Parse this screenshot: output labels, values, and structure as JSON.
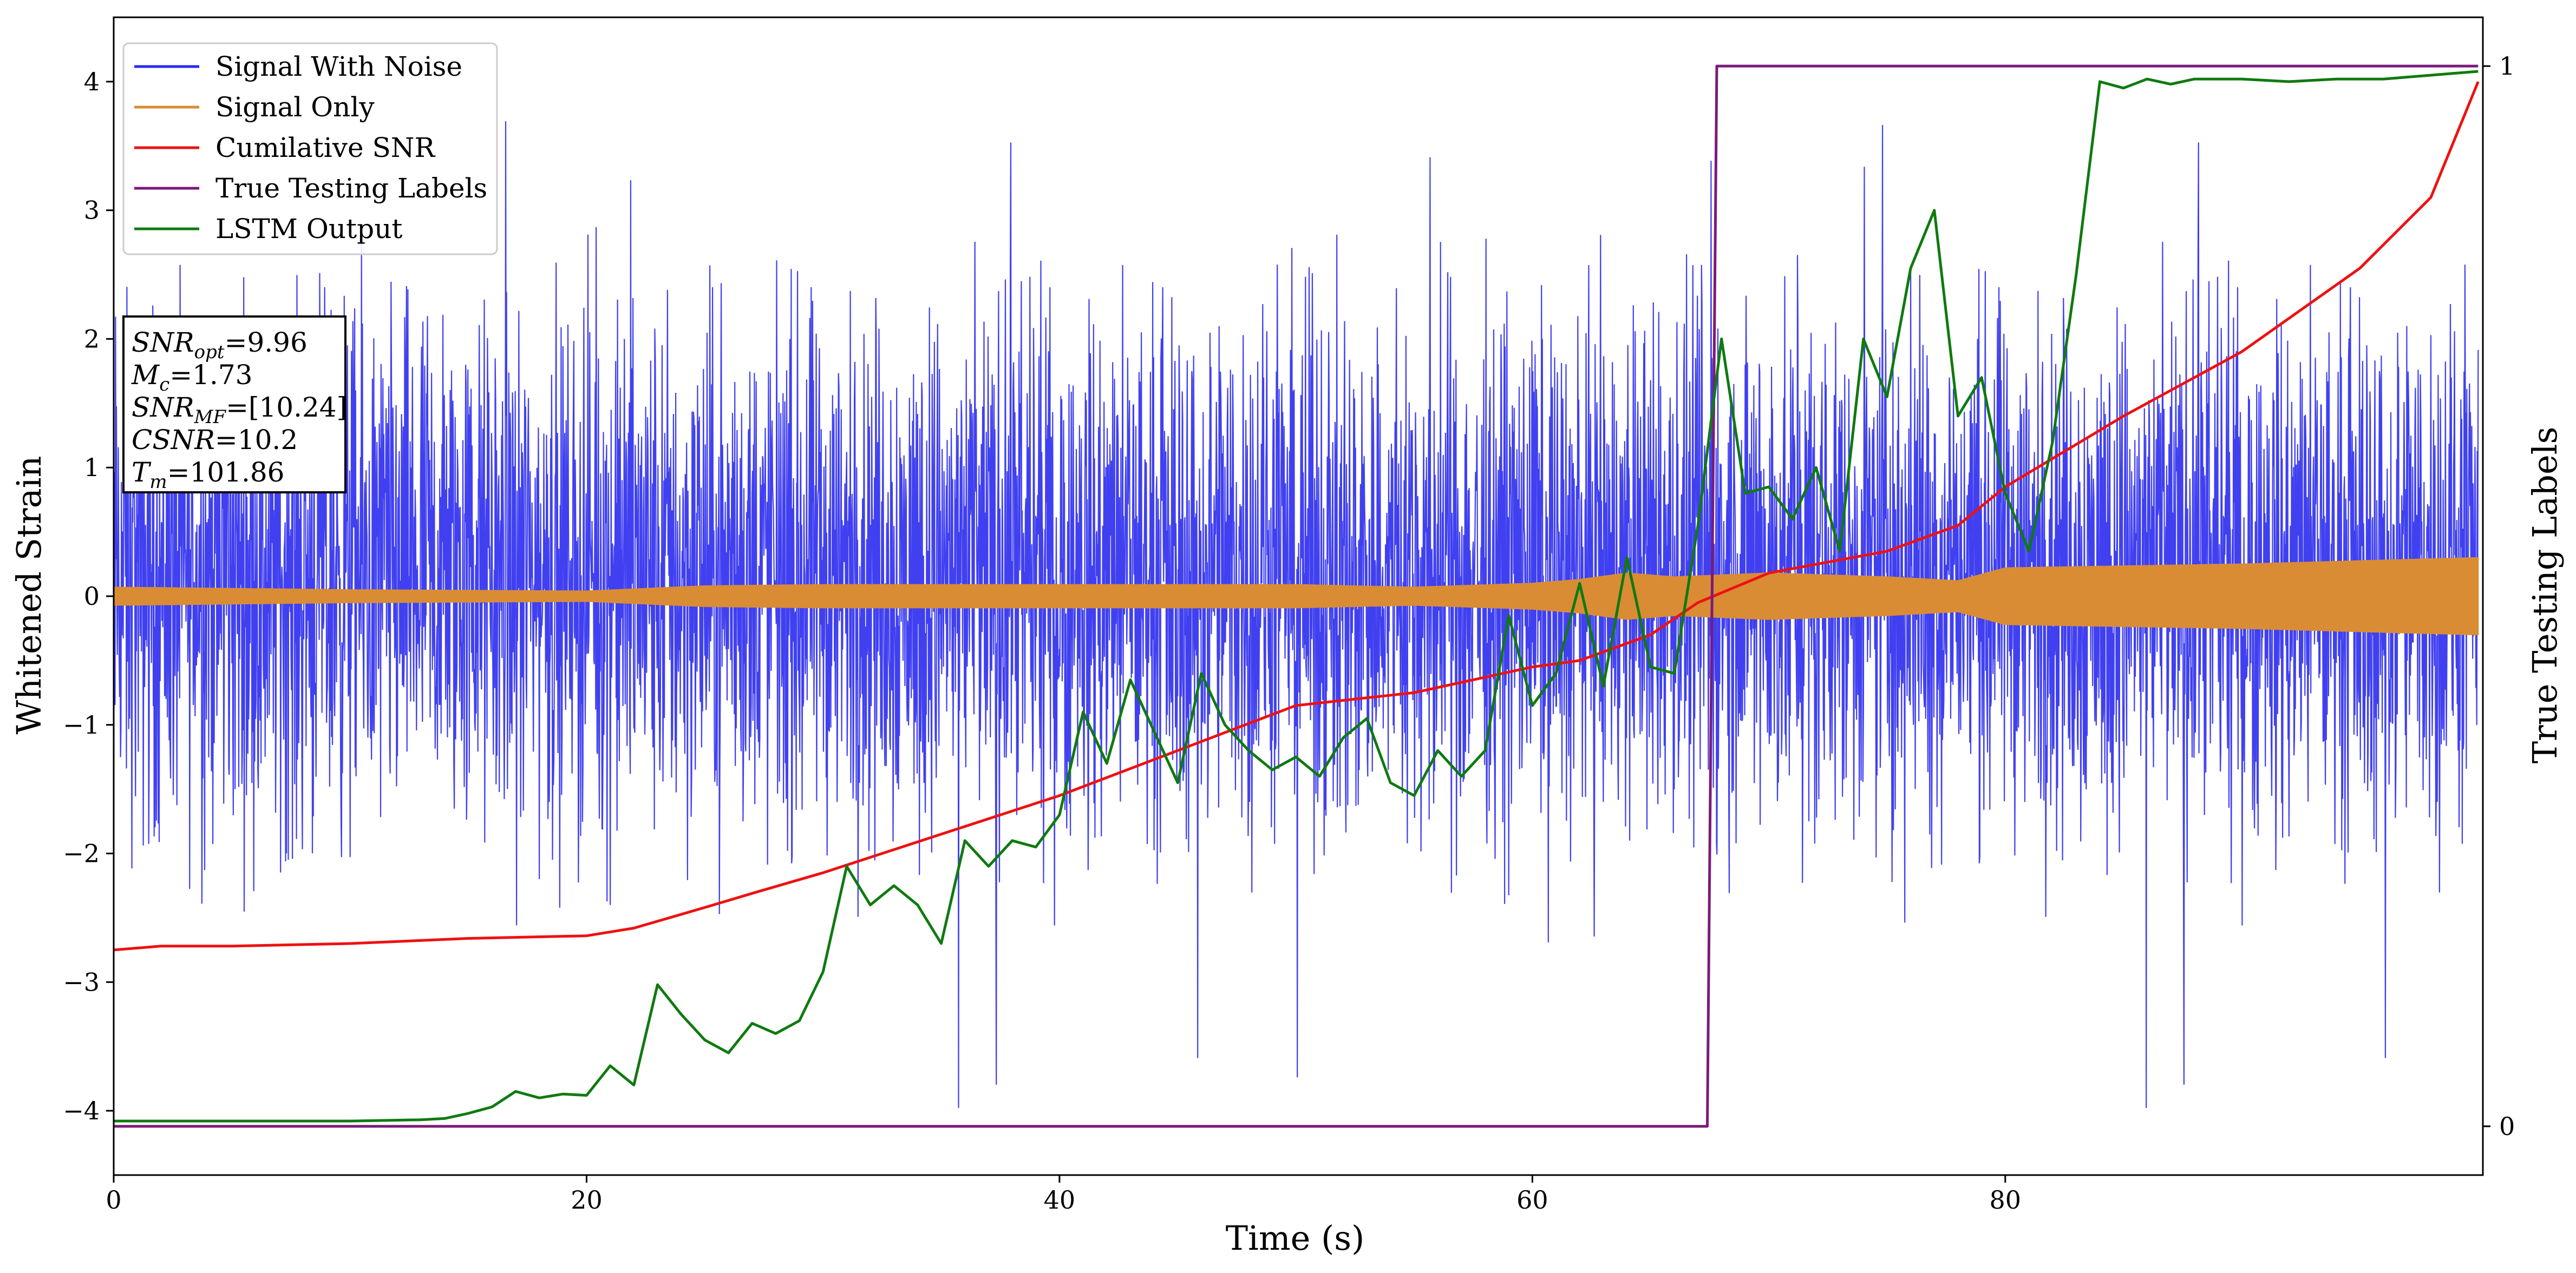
{
  "chart_data": {
    "type": "line",
    "xlabel": "Time (s)",
    "ylabel": "Whitened Strain",
    "y2label": "True Testing Labels",
    "xlim": [
      0,
      100.2
    ],
    "ylim": [
      -4.5,
      4.5
    ],
    "y2lim": [
      -0.046,
      1.046
    ],
    "x_ticks": [
      0,
      20,
      40,
      60,
      80
    ],
    "y_ticks": [
      -4,
      -3,
      -2,
      -1,
      0,
      1,
      2,
      3,
      4
    ],
    "y2_ticks": [
      0,
      1
    ],
    "legend": {
      "placement": "top-left",
      "entries": [
        "Signal With Noise",
        "Signal Only",
        "Cumilative SNR",
        "True Testing Labels",
        "LSTM Output"
      ]
    },
    "info_box": {
      "lines": [
        {
          "main": "SNR",
          "sub": "opt",
          "rest": "=9.96"
        },
        {
          "main": "M",
          "sub": "c",
          "rest": "=1.73"
        },
        {
          "main": "SNR",
          "sub": "MF",
          "rest": "=[10.24]"
        },
        {
          "main": "CSNR",
          "sub": "",
          "rest": "=10.2"
        },
        {
          "main": "T",
          "sub": "m",
          "rest": "=101.86"
        }
      ]
    },
    "series": [
      {
        "name": "Signal With Noise",
        "color": "#2b2bf0",
        "axis": "left",
        "kind": "noise",
        "typical_range": [
          -2.6,
          2.9
        ],
        "extremes": [
          -4.0,
          3.8
        ]
      },
      {
        "name": "Signal Only",
        "color": "#d98c33",
        "axis": "left",
        "kind": "envelope",
        "x": [
          0,
          10,
          20,
          25,
          30,
          40,
          50,
          55,
          60,
          62,
          64,
          66,
          70,
          75,
          78,
          80,
          90,
          100
        ],
        "amplitude": [
          0.07,
          0.05,
          0.04,
          0.08,
          0.09,
          0.09,
          0.09,
          0.07,
          0.1,
          0.13,
          0.18,
          0.15,
          0.18,
          0.15,
          0.12,
          0.22,
          0.25,
          0.3
        ]
      },
      {
        "name": "Cumilative SNR",
        "color": "#ee1111",
        "axis": "left",
        "x": [
          0,
          2,
          5,
          10,
          15,
          20,
          22,
          25,
          27,
          30,
          35,
          40,
          45,
          50,
          55,
          60,
          62,
          65,
          67,
          70,
          75,
          78,
          80,
          85,
          90,
          95,
          98,
          100
        ],
        "y": [
          -2.75,
          -2.72,
          -2.72,
          -2.7,
          -2.66,
          -2.64,
          -2.58,
          -2.42,
          -2.31,
          -2.15,
          -1.85,
          -1.55,
          -1.2,
          -0.85,
          -0.75,
          -0.55,
          -0.5,
          -0.3,
          -0.05,
          0.18,
          0.35,
          0.55,
          0.85,
          1.4,
          1.9,
          2.55,
          3.1,
          4.0
        ]
      },
      {
        "name": "True Testing Labels",
        "color": "#7a1b7a",
        "axis": "right",
        "x": [
          0,
          67.4,
          67.8,
          100
        ],
        "y": [
          0,
          0,
          1,
          1
        ]
      },
      {
        "name": "LSTM Output",
        "color": "#0f7a0f",
        "axis": "left",
        "x": [
          0,
          5,
          10,
          13,
          14,
          15,
          16,
          17,
          18,
          19,
          20,
          21,
          22,
          23,
          24,
          25,
          26,
          27,
          28,
          29,
          30,
          31,
          32,
          33,
          34,
          35,
          36,
          37,
          38,
          39,
          40,
          41,
          42,
          43,
          44,
          45,
          46,
          47,
          48,
          49,
          50,
          51,
          52,
          53,
          54,
          55,
          56,
          57,
          58,
          59,
          60,
          61,
          62,
          63,
          64,
          65,
          66,
          67,
          68,
          69,
          70,
          71,
          72,
          73,
          74,
          75,
          76,
          77,
          78,
          79,
          80,
          81,
          82,
          83,
          84,
          85,
          86,
          87,
          88,
          90,
          92,
          94,
          96,
          98,
          100
        ],
        "y": [
          -4.08,
          -4.08,
          -4.08,
          -4.07,
          -4.06,
          -4.02,
          -3.97,
          -3.85,
          -3.9,
          -3.87,
          -3.88,
          -3.65,
          -3.8,
          -3.02,
          -3.25,
          -3.45,
          -3.55,
          -3.32,
          -3.4,
          -3.3,
          -2.92,
          -2.1,
          -2.4,
          -2.25,
          -2.4,
          -2.7,
          -1.9,
          -2.1,
          -1.9,
          -1.95,
          -1.7,
          -0.9,
          -1.3,
          -0.65,
          -1.05,
          -1.45,
          -0.6,
          -1.0,
          -1.2,
          -1.35,
          -1.25,
          -1.4,
          -1.1,
          -0.95,
          -1.45,
          -1.55,
          -1.2,
          -1.4,
          -1.2,
          -0.15,
          -0.85,
          -0.6,
          0.1,
          -0.7,
          0.3,
          -0.55,
          -0.6,
          0.55,
          2.0,
          0.8,
          0.85,
          0.6,
          1.0,
          0.35,
          2.0,
          1.55,
          2.55,
          3.0,
          1.4,
          1.7,
          0.8,
          0.35,
          1.2,
          2.5,
          4.0,
          3.95,
          4.02,
          3.98,
          4.02,
          4.02,
          4.0,
          4.02,
          4.02,
          4.05,
          4.08
        ]
      }
    ]
  }
}
